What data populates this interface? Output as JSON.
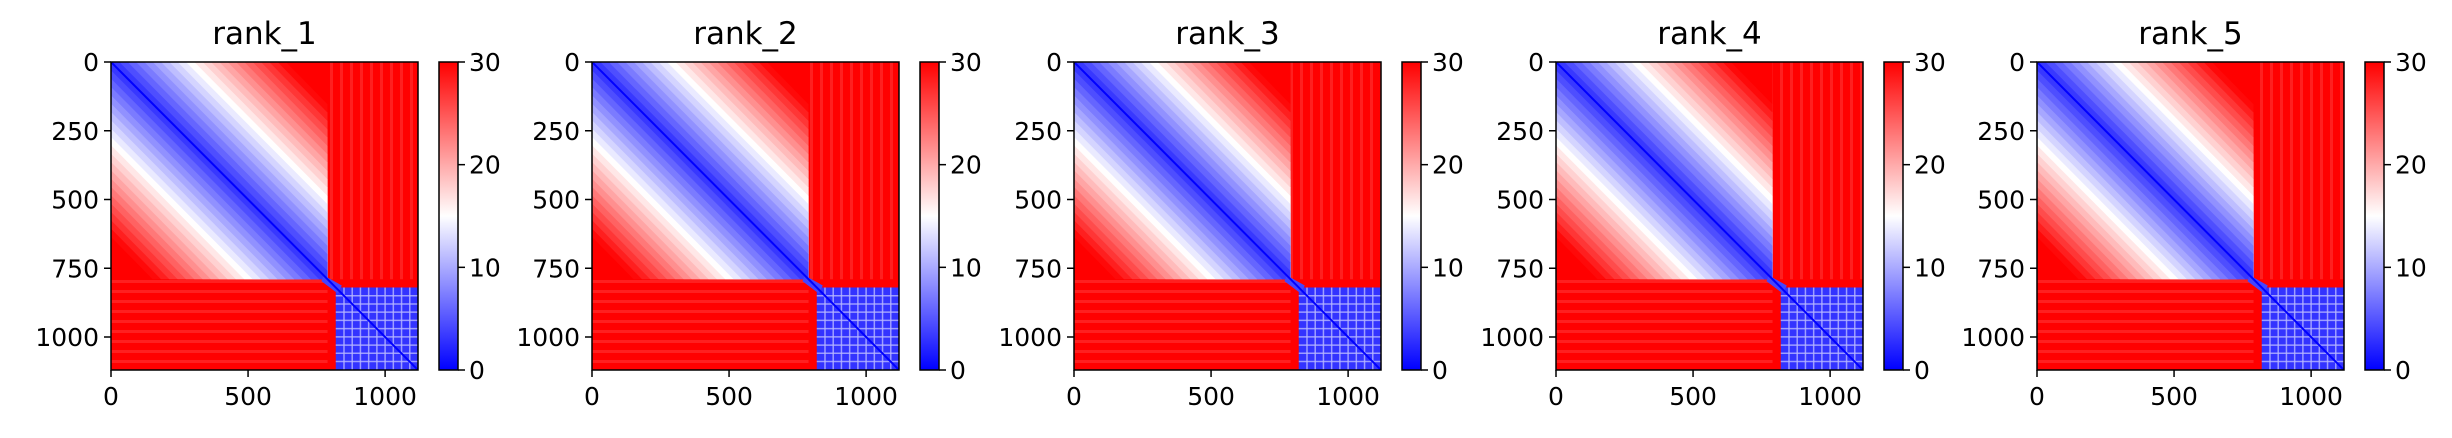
{
  "chart_data": [
    {
      "type": "heatmap",
      "title": "rank_1",
      "xlim": [
        0,
        1120
      ],
      "ylim": [
        1120,
        0
      ],
      "xticks": [
        "0",
        "500",
        "1000"
      ],
      "yticks": [
        "0",
        "250",
        "500",
        "750",
        "1000"
      ],
      "colorbar": {
        "range": [
          0,
          30
        ],
        "ticks": [
          "0",
          "10",
          "20",
          "30"
        ],
        "colormap": "bwr"
      },
      "blocks": [
        {
          "start": 0,
          "end": 790,
          "inner": "low"
        },
        {
          "start": 820,
          "end": 1120,
          "inner": "low"
        }
      ]
    },
    {
      "type": "heatmap",
      "title": "rank_2",
      "xlim": [
        0,
        1120
      ],
      "ylim": [
        1120,
        0
      ],
      "xticks": [
        "0",
        "500",
        "1000"
      ],
      "yticks": [
        "0",
        "250",
        "500",
        "750",
        "1000"
      ],
      "colorbar": {
        "range": [
          0,
          30
        ],
        "ticks": [
          "0",
          "10",
          "20",
          "30"
        ],
        "colormap": "bwr"
      },
      "blocks": [
        {
          "start": 0,
          "end": 790,
          "inner": "low"
        },
        {
          "start": 820,
          "end": 1120,
          "inner": "low"
        }
      ]
    },
    {
      "type": "heatmap",
      "title": "rank_3",
      "xlim": [
        0,
        1120
      ],
      "ylim": [
        1120,
        0
      ],
      "xticks": [
        "0",
        "500",
        "1000"
      ],
      "yticks": [
        "0",
        "250",
        "500",
        "750",
        "1000"
      ],
      "colorbar": {
        "range": [
          0,
          30
        ],
        "ticks": [
          "0",
          "10",
          "20",
          "30"
        ],
        "colormap": "bwr"
      },
      "blocks": [
        {
          "start": 0,
          "end": 790,
          "inner": "low"
        },
        {
          "start": 820,
          "end": 1120,
          "inner": "low"
        }
      ]
    },
    {
      "type": "heatmap",
      "title": "rank_4",
      "xlim": [
        0,
        1120
      ],
      "ylim": [
        1120,
        0
      ],
      "xticks": [
        "0",
        "500",
        "1000"
      ],
      "yticks": [
        "0",
        "250",
        "500",
        "750",
        "1000"
      ],
      "colorbar": {
        "range": [
          0,
          30
        ],
        "ticks": [
          "0",
          "10",
          "20",
          "30"
        ],
        "colormap": "bwr"
      },
      "blocks": [
        {
          "start": 0,
          "end": 790,
          "inner": "low"
        },
        {
          "start": 820,
          "end": 1120,
          "inner": "low"
        }
      ]
    },
    {
      "type": "heatmap",
      "title": "rank_5",
      "xlim": [
        0,
        1120
      ],
      "ylim": [
        1120,
        0
      ],
      "xticks": [
        "0",
        "500",
        "1000"
      ],
      "yticks": [
        "0",
        "250",
        "500",
        "750",
        "1000"
      ],
      "colorbar": {
        "range": [
          0,
          30
        ],
        "ticks": [
          "0",
          "10",
          "20",
          "30"
        ],
        "colormap": "bwr"
      },
      "blocks": [
        {
          "start": 0,
          "end": 790,
          "inner": "low"
        },
        {
          "start": 820,
          "end": 1120,
          "inner": "low"
        }
      ]
    }
  ]
}
